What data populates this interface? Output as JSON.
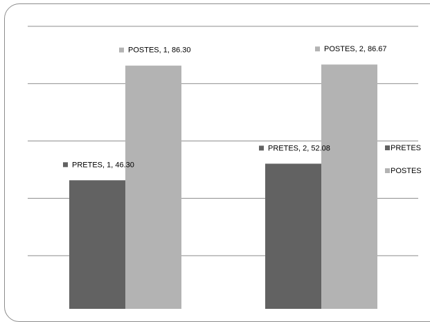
{
  "chart_data": {
    "type": "bar",
    "categories": [
      "1",
      "2"
    ],
    "series": [
      {
        "name": "PRETES",
        "values": [
          46.3,
          52.08
        ],
        "color": "#626262"
      },
      {
        "name": "POSTES",
        "values": [
          86.3,
          86.67
        ],
        "color": "#b3b3b3"
      }
    ],
    "data_labels": [
      [
        "PRETES, 1, 46.30",
        "PRETES, 2, 52.08"
      ],
      [
        "POSTES, 1, 86.30",
        "POSTES, 2, 86.67"
      ]
    ],
    "ylim": [
      0,
      100
    ],
    "yticks": [
      0,
      20,
      40,
      60,
      80,
      100
    ],
    "grid": true,
    "legend": "right",
    "title": "",
    "xlabel": "",
    "ylabel": "",
    "gridline_color": "#8c8c8c"
  }
}
